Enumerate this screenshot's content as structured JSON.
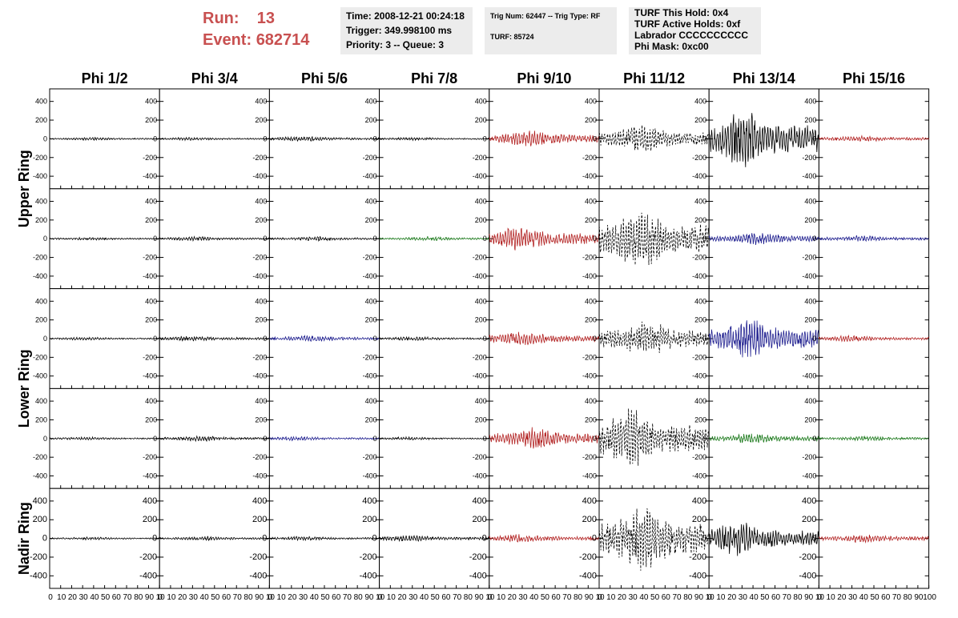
{
  "header": {
    "run_label": "Run:",
    "run_value": "13",
    "event_label": "Event:",
    "event_value": "682714",
    "time_box": [
      "Time: 2008-12-21 00:24:18",
      "Trigger: 349.998100 ms",
      "Priority: 3 -- Queue: 3"
    ],
    "trig_box": [
      "Trig Num: 62447 -- Trig Type: RF",
      "TURF: 85724"
    ],
    "turf_box": [
      "TURF This Hold: 0x4",
      "TURF Active Holds: 0xf",
      "Labrador CCCCCCCCCC",
      "Phi Mask: 0xc00"
    ]
  },
  "chart_data": {
    "type": "line",
    "columns": [
      "Phi 1/2",
      "Phi 3/4",
      "Phi 5/6",
      "Phi 7/8",
      "Phi 9/10",
      "Phi 11/12",
      "Phi 13/14",
      "Phi 15/16"
    ],
    "row_labels": [
      "Upper Ring",
      "Lower Ring",
      "Nadir Ring"
    ],
    "yticks": [
      400,
      200,
      0,
      -200,
      -400
    ],
    "ylim": [
      -500,
      500
    ],
    "xlim": [
      0,
      100
    ],
    "xtick_labels": [
      "0",
      "10",
      "20",
      "30",
      "40",
      "50",
      "60",
      "70",
      "80",
      "90",
      "10"
    ],
    "xtick_labels_last": [
      "0",
      "10",
      "20",
      "30",
      "40",
      "50",
      "60",
      "70",
      "80",
      "90",
      "100"
    ],
    "colors": {
      "black": "#000000",
      "red": "#b22222",
      "blue": "#1f1f8f",
      "green": "#1e7b1e"
    },
    "panel_colors": [
      [
        "black",
        "black",
        "black",
        "black",
        "red",
        "black",
        "black",
        "red"
      ],
      [
        "black",
        "black",
        "black",
        "green",
        "red",
        "black",
        "blue",
        "blue"
      ],
      [
        "black",
        "black",
        "blue",
        "black",
        "red",
        "black",
        "blue",
        "red"
      ],
      [
        "black",
        "black",
        "blue",
        "black",
        "red",
        "black",
        "green",
        "green"
      ],
      [
        "black",
        "black",
        "black",
        "black",
        "red",
        "black",
        "black",
        "red"
      ]
    ],
    "panel_dashed": [
      [
        false,
        false,
        false,
        false,
        false,
        true,
        false,
        false
      ],
      [
        false,
        false,
        false,
        false,
        false,
        true,
        false,
        false
      ],
      [
        false,
        false,
        false,
        false,
        false,
        true,
        false,
        false
      ],
      [
        false,
        false,
        false,
        false,
        false,
        true,
        false,
        false
      ],
      [
        false,
        false,
        false,
        false,
        false,
        true,
        false,
        false
      ]
    ],
    "panel_amplitude": [
      [
        15,
        15,
        25,
        15,
        80,
        140,
        280,
        30
      ],
      [
        15,
        20,
        20,
        20,
        120,
        300,
        60,
        30
      ],
      [
        15,
        25,
        30,
        20,
        70,
        180,
        200,
        30
      ],
      [
        15,
        25,
        20,
        15,
        110,
        300,
        50,
        25
      ],
      [
        15,
        20,
        20,
        30,
        40,
        320,
        170,
        40
      ]
    ]
  }
}
